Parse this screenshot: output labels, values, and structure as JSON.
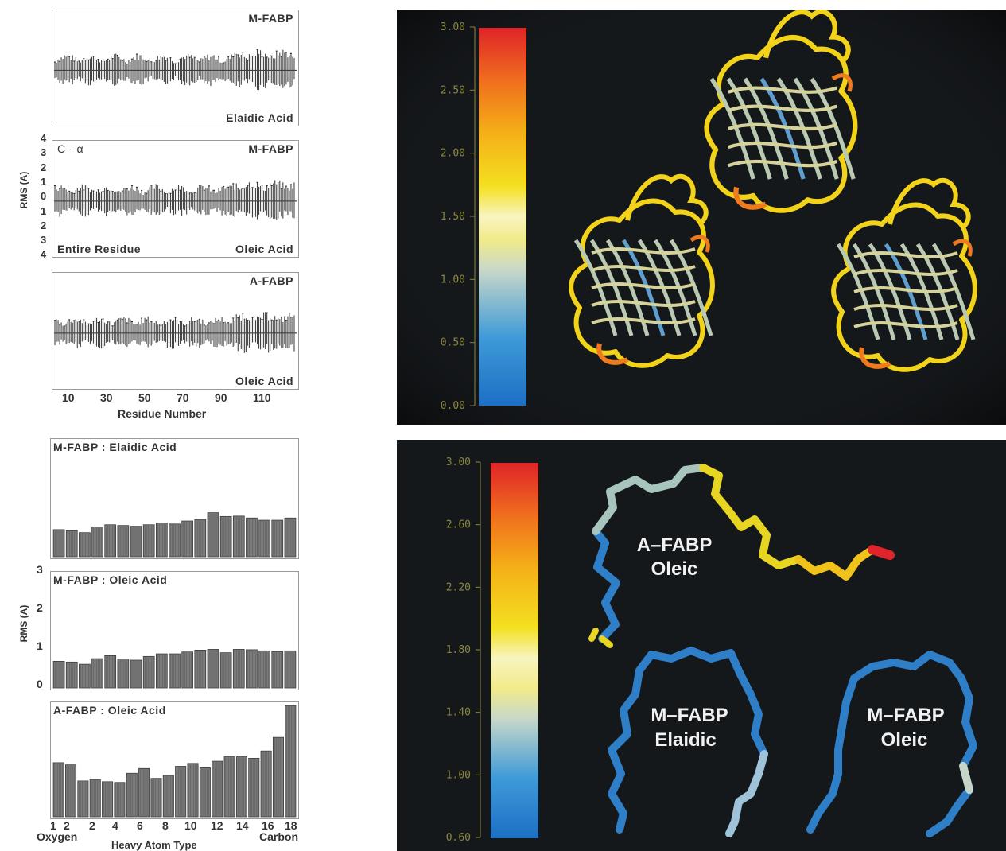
{
  "rmsf_panels": {
    "y_axis_label": "RMS (A)",
    "left_ticks": [
      "4",
      "3",
      "2",
      "1",
      "0",
      "1",
      "2",
      "3",
      "4"
    ],
    "panels": [
      {
        "top_right": "M-FABP",
        "top_left": "",
        "bottom_left": "",
        "bottom_right": "Elaidic  Acid"
      },
      {
        "top_right": "M-FABP",
        "top_left": "C - α",
        "bottom_left": "Entire  Residue",
        "bottom_right": "Oleic  Acid"
      },
      {
        "top_right": "A-FABP",
        "top_left": "",
        "bottom_left": "",
        "bottom_right": "Oleic  Acid"
      }
    ],
    "x_ticks": [
      "10",
      "30",
      "50",
      "70",
      "90",
      "110"
    ],
    "x_label": "Residue  Number"
  },
  "atom_panels": {
    "y_axis_label": "RMS (A)",
    "y_ticks": [
      "3",
      "2",
      "1",
      "0"
    ],
    "titles": [
      "M-FABP : Elaidic Acid",
      "M-FABP : Oleic Acid",
      "A-FABP : Oleic Acid"
    ],
    "x_ticks": [
      "1",
      "2",
      "2",
      "4",
      "6",
      "8",
      "10",
      "12",
      "14",
      "16",
      "18"
    ],
    "x_left": "Oxygen",
    "x_right": "Carbon",
    "x_label": "Heavy  Atom  Type"
  },
  "chart_data": [
    {
      "type": "bar",
      "title": "M-FABP : Elaidic Acid",
      "xlabel": "Heavy  Atom  Type",
      "ylabel": "RMS (A)",
      "ylim": [
        0,
        3
      ],
      "values": [
        0.72,
        0.69,
        0.64,
        0.79,
        0.85,
        0.83,
        0.81,
        0.85,
        0.9,
        0.87,
        0.95,
        0.99,
        1.17,
        1.07,
        1.08,
        1.03,
        0.97,
        0.97,
        1.03
      ]
    },
    {
      "type": "bar",
      "title": "M-FABP : Oleic Acid",
      "xlabel": "Heavy  Atom  Type",
      "ylabel": "RMS (A)",
      "ylim": [
        0,
        3
      ],
      "values": [
        0.72,
        0.7,
        0.64,
        0.79,
        0.87,
        0.78,
        0.75,
        0.85,
        0.92,
        0.92,
        0.97,
        1.02,
        1.04,
        0.95,
        1.04,
        1.03,
        1.0,
        0.98,
        1.0
      ]
    },
    {
      "type": "bar",
      "title": "A-FABP : Oleic Acid",
      "xlabel": "Heavy  Atom  Type",
      "ylabel": "RMS (A)",
      "ylim": [
        0,
        3
      ],
      "values": [
        1.48,
        1.42,
        0.98,
        1.02,
        0.96,
        0.94,
        1.19,
        1.32,
        1.05,
        1.13,
        1.38,
        1.46,
        1.34,
        1.52,
        1.64,
        1.64,
        1.6,
        1.8,
        2.17,
        3.04
      ]
    }
  ],
  "structure_panel": {
    "colorbar_ticks": [
      "3.00",
      "2.50",
      "2.00",
      "1.50",
      "1.00",
      "0.50",
      "0.00"
    ],
    "colors": {
      "red": "#e0242c",
      "orange": "#f39a1e",
      "yellow": "#f1e51d",
      "pale": "#f4f2b8",
      "blue": "#1d7ac8",
      "background": "#15181b",
      "tick": "#8a8640"
    }
  },
  "ligand_panel": {
    "colorbar_ticks": [
      "3.00",
      "2.60",
      "2.20",
      "1.80",
      "1.40",
      "1.00",
      "0.60"
    ],
    "labels": [
      {
        "line1": "A–FABP",
        "line2": "Oleic"
      },
      {
        "line1": "M–FABP",
        "line2": "Elaidic"
      },
      {
        "line1": "M–FABP",
        "line2": "Oleic"
      }
    ]
  }
}
